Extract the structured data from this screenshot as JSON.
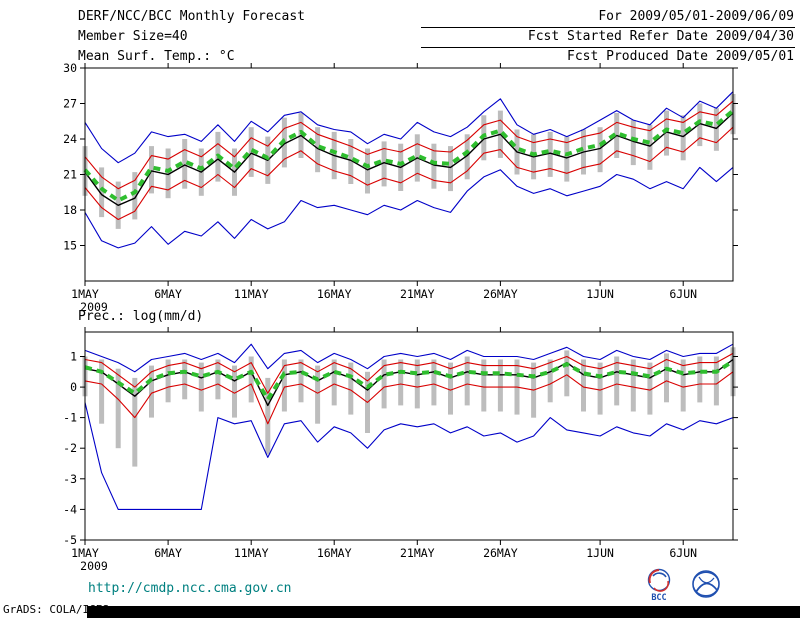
{
  "header": {
    "title": "DERF/NCC/BCC Monthly Forecast",
    "member_size": "Member Size=40",
    "temp_label": "Mean Surf. Temp.: °C",
    "for_range": "For 2009/05/01-2009/06/09",
    "fcst_started": "Fcst Started Refer Date 2009/04/30",
    "fcst_produced": "Fcst Produced Date 2009/05/01"
  },
  "prec_label": "Prec.: log(mm/d)",
  "footer": {
    "url": "http://cmdp.ncc.cma.gov.cn",
    "credit": "GrADS: COLA/IGES",
    "bcc_label": "BCC"
  },
  "colors": {
    "series": {
      "blue": "#0000c8",
      "red": "#d80000",
      "black": "#000000",
      "green": "#2fbe2f"
    },
    "spread_bar": "#bdbdbd",
    "url_text": "#008080",
    "logo_blue": "#2050b0",
    "logo_red": "#d03030"
  },
  "chart_data": [
    {
      "type": "line",
      "title": "Mean Surf. Temp.: °C",
      "xlabel": "",
      "ylabel": "°C",
      "xlim": [
        0,
        39
      ],
      "ylim": [
        12,
        30
      ],
      "y_ticks": [
        15,
        18,
        21,
        24,
        27,
        30
      ],
      "x_tick_days": [
        0,
        5,
        10,
        15,
        20,
        25,
        31,
        36
      ],
      "x_tick_labels": [
        "1MAY",
        "6MAY",
        "11MAY",
        "16MAY",
        "21MAY",
        "26MAY",
        "1JUN",
        "6JUN"
      ],
      "x_sub_label": "2009",
      "grid": false,
      "legend": "none",
      "series": [
        {
          "name": "ensemble-max",
          "color": "blue",
          "values": [
            25.4,
            23.2,
            22.0,
            22.8,
            24.6,
            24.2,
            24.4,
            23.8,
            25.2,
            23.8,
            25.5,
            24.6,
            26.0,
            26.3,
            25.2,
            24.8,
            24.6,
            23.6,
            24.4,
            24.0,
            25.4,
            24.6,
            24.2,
            25.0,
            26.3,
            27.4,
            25.2,
            24.4,
            24.8,
            24.2,
            24.8,
            25.6,
            26.4,
            25.6,
            25.2,
            26.6,
            25.8,
            27.2,
            26.6,
            28.0
          ]
        },
        {
          "name": "ensemble-min",
          "color": "blue",
          "values": [
            17.8,
            15.4,
            14.8,
            15.2,
            16.6,
            15.1,
            16.2,
            15.8,
            17.0,
            15.6,
            17.2,
            16.4,
            17.0,
            18.8,
            18.2,
            18.4,
            18.0,
            17.6,
            18.4,
            18.0,
            18.8,
            18.2,
            17.8,
            19.6,
            20.8,
            21.4,
            20.0,
            19.4,
            19.8,
            19.2,
            19.6,
            20.0,
            21.0,
            20.6,
            19.8,
            20.4,
            19.8,
            21.6,
            20.4,
            21.6
          ]
        },
        {
          "name": "upper-spread",
          "color": "red",
          "values": [
            22.5,
            20.8,
            19.8,
            20.5,
            22.6,
            22.3,
            23.1,
            22.5,
            23.6,
            22.5,
            24.1,
            23.4,
            24.9,
            25.4,
            24.4,
            23.9,
            23.4,
            22.7,
            23.2,
            22.9,
            23.6,
            23.0,
            22.9,
            23.9,
            25.2,
            25.6,
            24.2,
            23.7,
            24.0,
            23.7,
            24.2,
            24.5,
            25.4,
            25.0,
            24.7,
            25.7,
            25.4,
            26.3,
            26.0,
            27.2
          ]
        },
        {
          "name": "lower-spread",
          "color": "red",
          "values": [
            19.9,
            18.2,
            17.2,
            17.9,
            20.0,
            19.7,
            20.5,
            19.9,
            21.0,
            19.9,
            21.5,
            20.9,
            22.3,
            23.0,
            21.9,
            21.3,
            20.9,
            20.1,
            20.7,
            20.3,
            21.1,
            20.5,
            20.3,
            21.3,
            22.8,
            23.1,
            21.6,
            21.2,
            21.5,
            21.1,
            21.6,
            21.9,
            23.0,
            22.6,
            22.1,
            23.3,
            22.9,
            24.1,
            23.7,
            25.0
          ]
        },
        {
          "name": "ensemble-mean",
          "color": "black",
          "values": [
            21.2,
            19.3,
            18.4,
            19.0,
            21.3,
            21.0,
            21.8,
            21.2,
            22.3,
            21.2,
            22.8,
            22.2,
            23.6,
            24.3,
            23.2,
            22.6,
            22.2,
            21.4,
            22.0,
            21.6,
            22.4,
            21.8,
            21.6,
            22.6,
            24.0,
            24.4,
            22.9,
            22.5,
            22.8,
            22.4,
            22.9,
            23.2,
            24.3,
            23.8,
            23.4,
            24.6,
            24.2,
            25.3,
            24.9,
            26.2
          ]
        },
        {
          "name": "ensemble-median",
          "color": "green",
          "values": [
            21.4,
            19.8,
            18.8,
            19.5,
            21.6,
            21.3,
            22.1,
            21.5,
            22.6,
            21.5,
            23.1,
            22.4,
            23.9,
            24.6,
            23.4,
            22.9,
            22.4,
            21.7,
            22.2,
            21.9,
            22.6,
            22.0,
            21.9,
            22.9,
            24.3,
            24.7,
            23.2,
            22.7,
            23.0,
            22.7,
            23.2,
            23.5,
            24.5,
            24.0,
            23.7,
            24.8,
            24.5,
            25.5,
            25.2,
            26.4
          ]
        }
      ],
      "spread_bars": {
        "high": [
          23.4,
          21.6,
          20.4,
          21.2,
          23.4,
          23.2,
          24.0,
          23.2,
          24.6,
          23.2,
          25.0,
          24.2,
          25.8,
          26.2,
          25.0,
          24.6,
          24.0,
          23.2,
          23.8,
          23.6,
          24.4,
          23.6,
          23.4,
          24.4,
          26.0,
          26.4,
          24.8,
          24.4,
          24.6,
          24.2,
          24.8,
          25.0,
          26.2,
          25.6,
          25.2,
          26.4,
          26.0,
          27.0,
          26.6,
          27.8
        ],
        "low": [
          19.2,
          17.4,
          16.4,
          17.2,
          19.4,
          19.0,
          19.8,
          19.2,
          20.4,
          19.2,
          20.8,
          20.2,
          21.6,
          22.4,
          21.2,
          20.6,
          20.2,
          19.4,
          20.0,
          19.6,
          20.4,
          19.8,
          19.6,
          20.6,
          22.2,
          22.4,
          21.0,
          20.6,
          20.8,
          20.4,
          21.0,
          21.2,
          22.4,
          21.8,
          21.4,
          22.6,
          22.2,
          23.4,
          23.0,
          24.4
        ]
      }
    },
    {
      "type": "line",
      "title": "Prec.: log(mm/d)",
      "xlabel": "",
      "ylabel": "log(mm/d)",
      "xlim": [
        0,
        39
      ],
      "ylim": [
        -5,
        1.8
      ],
      "y_ticks": [
        1,
        0,
        -1,
        -2,
        -3,
        -4,
        -5
      ],
      "x_tick_days": [
        0,
        5,
        10,
        15,
        20,
        25,
        31,
        36
      ],
      "x_tick_labels": [
        "1MAY",
        "6MAY",
        "11MAY",
        "16MAY",
        "21MAY",
        "26MAY",
        "1JUN",
        "6JUN"
      ],
      "x_sub_label": "2009",
      "grid": false,
      "legend": "none",
      "series": [
        {
          "name": "ensemble-max",
          "color": "blue",
          "values": [
            1.2,
            1.0,
            0.8,
            0.5,
            0.9,
            1.0,
            1.1,
            0.9,
            1.1,
            0.8,
            1.4,
            0.6,
            1.1,
            1.2,
            0.8,
            1.1,
            0.9,
            0.6,
            1.0,
            1.1,
            1.0,
            1.1,
            0.9,
            1.2,
            1.0,
            1.0,
            1.0,
            0.9,
            1.1,
            1.3,
            1.0,
            0.9,
            1.2,
            1.0,
            0.9,
            1.2,
            1.0,
            1.1,
            1.1,
            1.4
          ]
        },
        {
          "name": "ensemble-min",
          "color": "blue",
          "values": [
            -0.5,
            -2.8,
            -4.0,
            -4.0,
            -4.0,
            -4.0,
            -4.0,
            -4.0,
            -1.0,
            -1.2,
            -1.1,
            -2.3,
            -1.2,
            -1.1,
            -1.8,
            -1.3,
            -1.5,
            -2.0,
            -1.4,
            -1.2,
            -1.3,
            -1.2,
            -1.5,
            -1.3,
            -1.6,
            -1.5,
            -1.8,
            -1.6,
            -1.0,
            -1.4,
            -1.5,
            -1.6,
            -1.3,
            -1.5,
            -1.6,
            -1.2,
            -1.4,
            -1.1,
            -1.2,
            -1.0
          ]
        },
        {
          "name": "upper-spread",
          "color": "red",
          "values": [
            0.9,
            0.8,
            0.4,
            0.0,
            0.5,
            0.7,
            0.8,
            0.6,
            0.8,
            0.5,
            0.8,
            -0.2,
            0.7,
            0.8,
            0.5,
            0.8,
            0.6,
            0.2,
            0.7,
            0.8,
            0.7,
            0.8,
            0.6,
            0.8,
            0.7,
            0.7,
            0.7,
            0.6,
            0.8,
            1.0,
            0.7,
            0.6,
            0.8,
            0.7,
            0.6,
            0.9,
            0.7,
            0.8,
            0.8,
            1.1
          ]
        },
        {
          "name": "lower-spread",
          "color": "red",
          "values": [
            0.2,
            0.1,
            -0.4,
            -1.0,
            -0.2,
            0.0,
            0.1,
            -0.1,
            0.1,
            -0.2,
            0.1,
            -1.2,
            0.0,
            0.1,
            -0.2,
            0.1,
            -0.1,
            -0.5,
            0.0,
            0.1,
            0.0,
            0.1,
            -0.1,
            0.1,
            0.0,
            0.0,
            0.0,
            -0.1,
            0.1,
            0.4,
            0.0,
            -0.1,
            0.1,
            0.0,
            -0.1,
            0.2,
            0.0,
            0.1,
            0.1,
            0.5
          ]
        },
        {
          "name": "ensemble-mean",
          "color": "black",
          "values": [
            0.6,
            0.5,
            0.1,
            -0.3,
            0.2,
            0.4,
            0.5,
            0.3,
            0.5,
            0.2,
            0.5,
            -0.6,
            0.4,
            0.5,
            0.2,
            0.5,
            0.3,
            -0.1,
            0.4,
            0.5,
            0.4,
            0.5,
            0.3,
            0.5,
            0.4,
            0.4,
            0.4,
            0.3,
            0.5,
            0.8,
            0.4,
            0.3,
            0.5,
            0.4,
            0.3,
            0.6,
            0.4,
            0.5,
            0.5,
            0.9
          ]
        },
        {
          "name": "ensemble-median",
          "color": "green",
          "values": [
            0.65,
            0.5,
            0.15,
            -0.2,
            0.25,
            0.45,
            0.5,
            0.35,
            0.5,
            0.25,
            0.5,
            -0.4,
            0.45,
            0.5,
            0.25,
            0.5,
            0.35,
            0.0,
            0.4,
            0.5,
            0.45,
            0.5,
            0.35,
            0.5,
            0.45,
            0.45,
            0.4,
            0.35,
            0.5,
            0.75,
            0.45,
            0.35,
            0.5,
            0.45,
            0.35,
            0.6,
            0.45,
            0.5,
            0.5,
            0.85
          ]
        }
      ],
      "spread_bars": {
        "high": [
          1.0,
          0.9,
          0.6,
          0.3,
          0.7,
          0.9,
          0.9,
          0.8,
          0.9,
          0.7,
          1.0,
          0.3,
          0.9,
          0.9,
          0.7,
          0.9,
          0.8,
          0.5,
          0.9,
          0.9,
          0.9,
          0.9,
          0.8,
          1.0,
          0.9,
          0.9,
          0.9,
          0.8,
          0.9,
          1.2,
          0.9,
          0.8,
          1.0,
          0.9,
          0.8,
          1.1,
          0.9,
          1.0,
          1.0,
          1.3
        ],
        "low": [
          -0.3,
          -1.2,
          -2.0,
          -2.6,
          -1.0,
          -0.5,
          -0.4,
          -0.8,
          -0.4,
          -1.0,
          -0.5,
          -2.2,
          -0.8,
          -0.5,
          -1.2,
          -0.6,
          -0.9,
          -1.5,
          -0.7,
          -0.6,
          -0.7,
          -0.6,
          -0.9,
          -0.6,
          -0.8,
          -0.8,
          -0.9,
          -1.0,
          -0.5,
          -0.3,
          -0.8,
          -0.9,
          -0.6,
          -0.8,
          -0.9,
          -0.5,
          -0.8,
          -0.5,
          -0.6,
          -0.3
        ]
      }
    }
  ]
}
